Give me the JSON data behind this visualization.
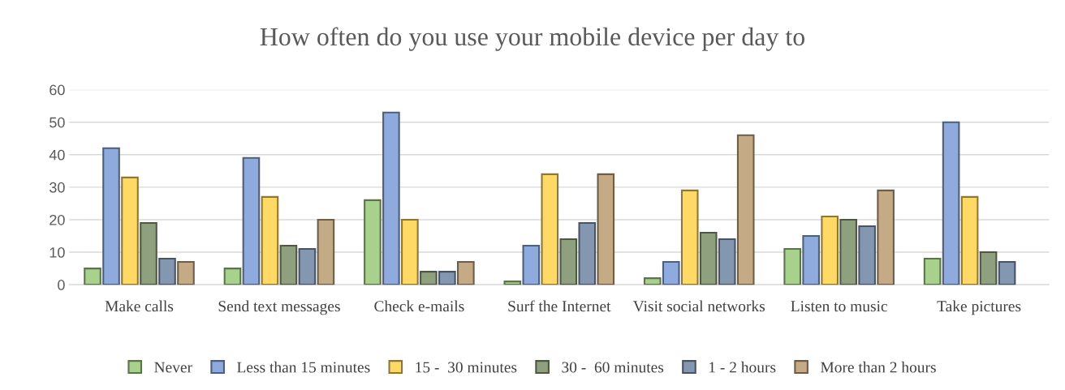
{
  "chart_data": {
    "type": "bar",
    "title": "How often do you use your mobile device per day to",
    "categories": [
      "Make calls",
      "Send text messages",
      "Check e-mails",
      "Surf the Internet",
      "Visit social networks",
      "Listen to music",
      "Take pictures"
    ],
    "series": [
      {
        "name": "Never",
        "color": "#a9d18e",
        "values": [
          5,
          5,
          26,
          1,
          2,
          11,
          8
        ]
      },
      {
        "name": "Less than 15 minutes",
        "color": "#8faadc",
        "values": [
          42,
          39,
          53,
          12,
          7,
          15,
          50
        ]
      },
      {
        "name": "15 -  30 minutes",
        "color": "#ffd966",
        "values": [
          33,
          27,
          20,
          34,
          29,
          21,
          27
        ]
      },
      {
        "name": "30 -  60 minutes",
        "color": "#8fa07f",
        "values": [
          19,
          12,
          4,
          14,
          16,
          20,
          10
        ]
      },
      {
        "name": "1 - 2 hours",
        "color": "#8497b0",
        "values": [
          8,
          11,
          4,
          19,
          14,
          18,
          7
        ]
      },
      {
        "name": "More than 2 hours",
        "color": "#c4ab86",
        "values": [
          7,
          20,
          7,
          34,
          46,
          29,
          null
        ]
      }
    ],
    "ylim": [
      0,
      60
    ],
    "yticks": [
      0,
      10,
      20,
      30,
      40,
      50,
      60
    ],
    "grid": "y",
    "legend": "bottom"
  }
}
